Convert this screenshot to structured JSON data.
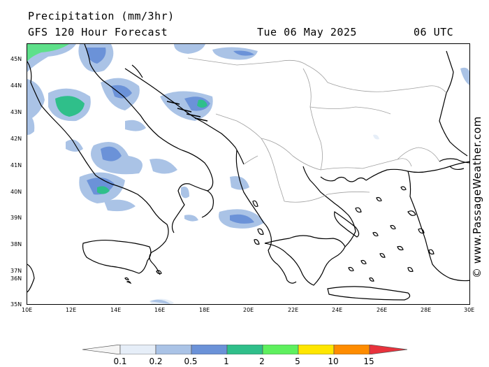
{
  "title": {
    "line1": "Precipitation (mm/3hr)",
    "line2": "GFS 120 Hour Forecast",
    "date": "Tue 06 May 2025",
    "time": "06 UTC"
  },
  "map": {
    "lat_labels": [
      "45N",
      "44N",
      "43N",
      "42N",
      "41N",
      "40N",
      "39N",
      "38N",
      "37N",
      "36N",
      "35N"
    ],
    "lon_labels": [
      "10E",
      "12E",
      "14E",
      "16E",
      "18E",
      "20E",
      "22E",
      "24E",
      "26E",
      "28E",
      "30E"
    ],
    "credit": "© www.PassageWeather.com",
    "colors": {
      "coast": "#000000",
      "border": "#a0a0a0",
      "sea": "#ffffff"
    }
  },
  "legend": {
    "ticks": [
      "0.1",
      "0.2",
      "0.5",
      "1",
      "2",
      "5",
      "10",
      "15"
    ],
    "colors": [
      "#f5f5f5",
      "#e6eef8",
      "#aac3e6",
      "#6b92d8",
      "#2fbf8a",
      "#5ef05e",
      "#ffe600",
      "#ff8c00",
      "#e8323c"
    ]
  }
}
